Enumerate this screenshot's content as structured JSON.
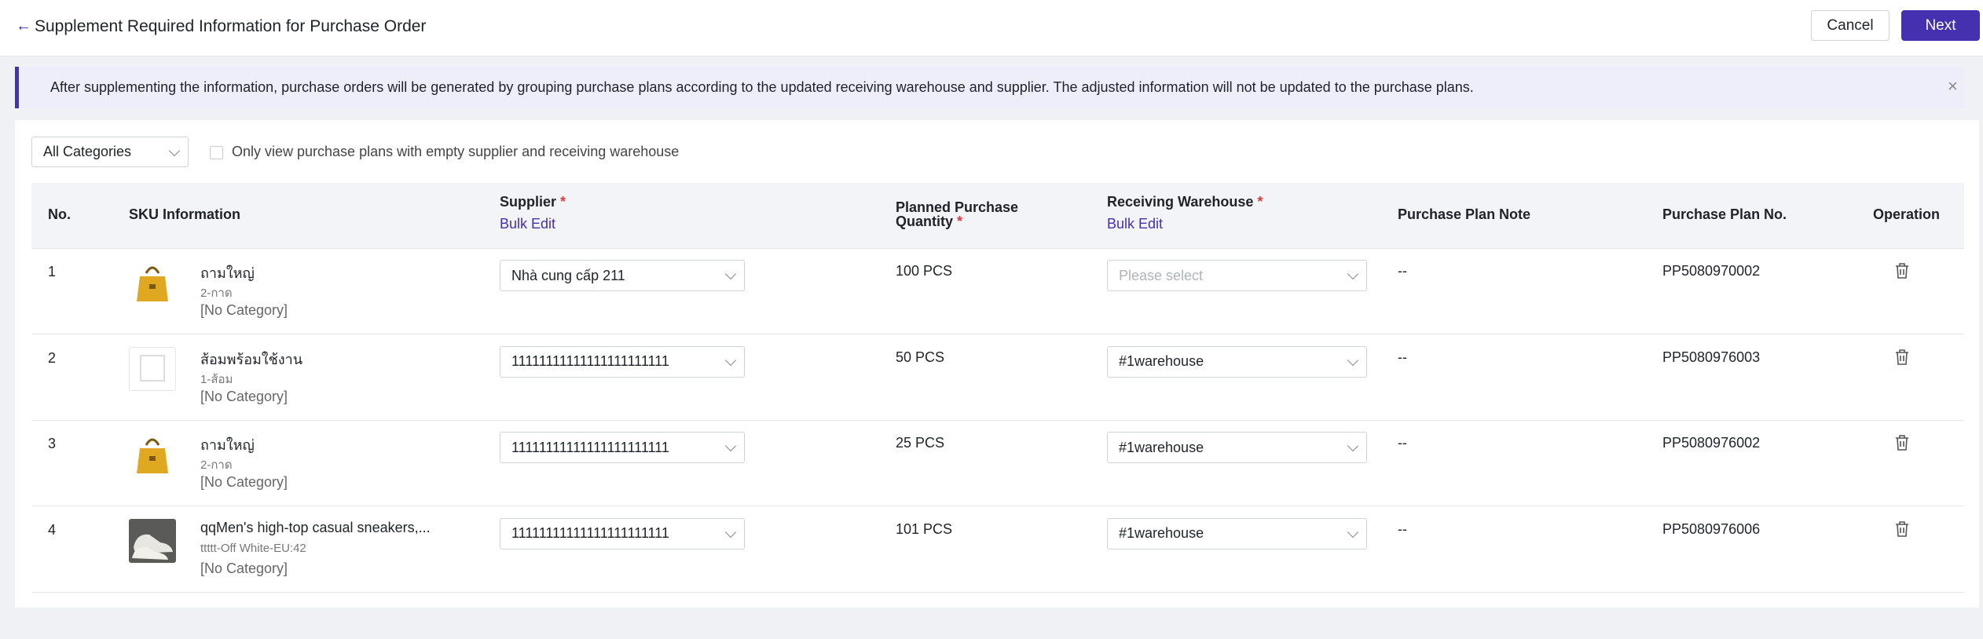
{
  "header": {
    "title": "Supplement Required Information for Purchase Order",
    "cancel": "Cancel",
    "next": "Next"
  },
  "banner": {
    "text": "After supplementing the information, purchase orders will be generated by grouping purchase plans according to the updated receiving warehouse and supplier. The adjusted information will not be updated to the purchase plans."
  },
  "filters": {
    "category": "All Categories",
    "checkbox_label": "Only view purchase plans with empty supplier and receiving warehouse"
  },
  "table": {
    "columns": [
      {
        "label": "No."
      },
      {
        "label": "SKU Information"
      },
      {
        "label": "Supplier",
        "required": "*",
        "action": "Bulk Edit"
      },
      {
        "label": "Planned Purchase Quantity",
        "required": "*"
      },
      {
        "label": "Receiving Warehouse",
        "required": "*",
        "action": "Bulk Edit"
      },
      {
        "label": "Purchase Plan Note"
      },
      {
        "label": "Purchase Plan No."
      },
      {
        "label": "Operation"
      }
    ],
    "rows": [
      {
        "no": "1",
        "name": "ถามใหญ่",
        "spec": "2-กาด",
        "category": "[No Category]",
        "supplier": "Nhà cung cấp 211",
        "quantity": "100 PCS",
        "warehouse_placeholder": "Please select",
        "note": "--",
        "plan_no": "PP5080970002"
      },
      {
        "no": "2",
        "name": "ส้อมพร้อมใช้งาน",
        "spec": "1-ส้อม",
        "category": "[No Category]",
        "supplier": "11111111111111111111111",
        "quantity": "50 PCS",
        "warehouse": "#1warehouse",
        "note": "--",
        "plan_no": "PP5080976003"
      },
      {
        "no": "3",
        "name": "ถามใหญ่",
        "spec": "2-กาด",
        "category": "[No Category]",
        "supplier": "11111111111111111111111",
        "quantity": "25 PCS",
        "warehouse": "#1warehouse",
        "note": "--",
        "plan_no": "PP5080976002"
      },
      {
        "no": "4",
        "name": "qqMen's high-top casual sneakers,...",
        "spec": "ttttt-Off White-EU:42",
        "category": "[No Category]",
        "supplier": "11111111111111111111111",
        "quantity": "101 PCS",
        "warehouse": "#1warehouse",
        "note": "--",
        "plan_no": "PP5080976006"
      }
    ]
  }
}
